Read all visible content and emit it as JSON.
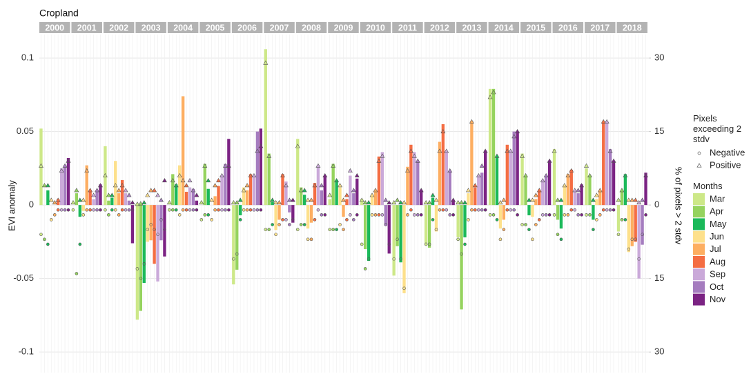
{
  "chart_data": {
    "type": "bar",
    "title": "Cropland",
    "ylabel": "EVI anomaly",
    "y2label": "% of pixels > 2 stdv",
    "facets": [
      "2000",
      "2001",
      "2002",
      "2003",
      "2004",
      "2005",
      "2006",
      "2007",
      "2008",
      "2009",
      "2010",
      "2011",
      "2012",
      "2013",
      "2014",
      "2015",
      "2016",
      "2017",
      "2018"
    ],
    "ylim": [
      -0.114,
      0.116
    ],
    "yticks": [
      -0.1,
      -0.05,
      0,
      0.05,
      0.1
    ],
    "y2lim": [
      -34.2,
      34.8
    ],
    "y2ticks": [
      {
        "value": -30,
        "label": "30"
      },
      {
        "value": -15,
        "label": "15"
      },
      0,
      15,
      {
        "value": 30,
        "label": "30"
      }
    ],
    "grid": true,
    "legend_title": "Months",
    "marker_legend": {
      "title": "Pixels exceeding 2 stdv",
      "items": [
        "Negative",
        "Positive"
      ]
    },
    "series": [
      {
        "name": "Mar",
        "color": "#cde888",
        "values": [
          0.052,
          0.0,
          0.04,
          -0.078,
          0.0,
          0.0,
          -0.054,
          0.106,
          0.045,
          0.004,
          0.004,
          -0.048,
          -0.026,
          -0.022,
          0.079,
          0.035,
          0.038,
          0.025,
          -0.018
        ],
        "positive": [
          8,
          0.5,
          6,
          0.2,
          0.5,
          0.5,
          0.5,
          29,
          12,
          2,
          1,
          0.5,
          0.5,
          0.5,
          22,
          10,
          11,
          8,
          1
        ],
        "negative": [
          -6,
          -1,
          -1,
          -13,
          -1,
          -3,
          -11,
          -5,
          -5,
          -5,
          -8,
          -11,
          -8,
          -7,
          -2,
          -4,
          -2,
          -2,
          -6
        ]
      },
      {
        "name": "Apr",
        "color": "#95d35e",
        "values": [
          0.0,
          0.008,
          0.003,
          -0.072,
          0.021,
          0.028,
          -0.044,
          0.035,
          0.012,
          0.028,
          -0.03,
          -0.028,
          -0.029,
          -0.071,
          0.079,
          0.019,
          -0.01,
          0.02,
          0.009
        ],
        "positive": [
          4,
          3,
          2,
          0.3,
          5,
          8,
          0.5,
          10,
          3,
          8,
          0.5,
          1,
          0.5,
          0.5,
          23,
          6,
          1,
          6,
          3
        ],
        "negative": [
          -7,
          -14,
          -2,
          -15,
          -1,
          -2,
          -10,
          -5,
          -4,
          -5,
          -13,
          -7,
          -8,
          -10,
          -2,
          -4,
          -6,
          -2,
          -3
        ]
      },
      {
        "name": "May",
        "color": "#1bb95a",
        "values": [
          0.01,
          -0.008,
          0.005,
          -0.053,
          0.014,
          0.011,
          -0.007,
          0.002,
          0.007,
          0.017,
          -0.038,
          -0.039,
          0.005,
          -0.022,
          0.033,
          -0.007,
          -0.016,
          -0.01,
          0.021
        ],
        "positive": [
          4,
          1,
          2,
          0.5,
          4,
          5,
          1,
          1,
          3,
          5,
          0.5,
          0.5,
          2,
          0.5,
          10,
          1,
          1,
          1,
          6
        ],
        "negative": [
          -8,
          -8,
          -1,
          -12,
          -1,
          -2,
          -3,
          -4,
          -4,
          -5,
          -11,
          -11,
          -3,
          -8,
          -3,
          -5,
          -7,
          -5,
          -3
        ]
      },
      {
        "name": "Jun",
        "color": "#fde08b",
        "values": [
          0.0,
          -0.004,
          0.03,
          -0.025,
          0.027,
          0.0,
          0.012,
          -0.017,
          -0.016,
          0.012,
          0.007,
          -0.06,
          -0.018,
          0.008,
          -0.016,
          -0.008,
          0.013,
          0.004,
          -0.032
        ],
        "positive": [
          1,
          1,
          4,
          2,
          6,
          1,
          3,
          0.5,
          1,
          4,
          2,
          0.5,
          1,
          3,
          0.5,
          1,
          4,
          2,
          1
        ],
        "negative": [
          -3,
          -2,
          -1,
          -5,
          -2,
          -3,
          -1,
          -6,
          -7,
          -4,
          -2,
          -17,
          -5,
          -3,
          -7,
          -7,
          -2,
          -3,
          -9
        ]
      },
      {
        "name": "Jul",
        "color": "#fdae61",
        "values": [
          0.0,
          0.027,
          0.008,
          -0.024,
          0.074,
          0.006,
          0.01,
          -0.01,
          -0.012,
          -0.008,
          0.01,
          0.026,
          0.043,
          0.057,
          -0.01,
          0.004,
          0.021,
          0.01,
          -0.028
        ],
        "positive": [
          0.5,
          7,
          3,
          3,
          5,
          4,
          4,
          0.5,
          1,
          1,
          3,
          7,
          11,
          17,
          1,
          2,
          6,
          3,
          1
        ],
        "negative": [
          -2,
          -1,
          -2,
          -4,
          -1,
          -1,
          -1,
          -4,
          -7,
          -5,
          -2,
          -2,
          -1,
          -1,
          -5,
          -4,
          -2,
          -2,
          -7
        ]
      },
      {
        "name": "Aug",
        "color": "#f46d43",
        "values": [
          0.004,
          0.009,
          0.017,
          -0.04,
          0.009,
          0.013,
          0.021,
          0.021,
          0.015,
          0.004,
          0.033,
          0.041,
          0.055,
          0.012,
          0.041,
          0.01,
          0.024,
          0.056,
          -0.025
        ],
        "positive": [
          1,
          3,
          4,
          3,
          4,
          5,
          6,
          6,
          4,
          2,
          9,
          11,
          15,
          4,
          11,
          3,
          7,
          17,
          1
        ],
        "negative": [
          -1,
          -1,
          -1,
          -5,
          -1,
          -1,
          -1,
          -3,
          -3,
          -3,
          -2,
          -1,
          -1,
          -1,
          -1,
          -3,
          -1,
          -1,
          -7
        ]
      },
      {
        "name": "Sep",
        "color": "#caa9d9",
        "values": [
          0.025,
          0.004,
          0.008,
          -0.052,
          0.012,
          0.02,
          0.02,
          0.016,
          0.027,
          0.02,
          0.036,
          0.036,
          0.036,
          0.02,
          0.037,
          0.016,
          0.01,
          0.057,
          -0.05
        ],
        "positive": [
          7,
          2,
          3,
          2,
          5,
          6,
          6,
          4,
          8,
          7,
          10,
          10,
          11,
          6,
          11,
          5,
          3,
          17,
          0.5
        ],
        "negative": [
          -1,
          -1,
          -1,
          -6,
          -1,
          -1,
          -1,
          -3,
          -1,
          -2,
          -2,
          -2,
          -1,
          -1,
          -1,
          -2,
          -1,
          -1,
          -11
        ]
      },
      {
        "name": "Oct",
        "color": "#a57cbf",
        "values": [
          0.027,
          0.009,
          0.003,
          -0.024,
          0.011,
          0.028,
          0.05,
          -0.005,
          0.01,
          0.008,
          -0.014,
          0.03,
          0.023,
          0.022,
          0.05,
          0.02,
          0.008,
          0.038,
          -0.027
        ],
        "positive": [
          8,
          3,
          2,
          1,
          3,
          8,
          11,
          1,
          4,
          3,
          1,
          9,
          7,
          8,
          14,
          6,
          3,
          11,
          1
        ],
        "negative": [
          -1,
          -1,
          -1,
          -3,
          -1,
          -1,
          -1,
          -4,
          -2,
          -3,
          -4,
          -2,
          -2,
          -1,
          -1,
          -2,
          -2,
          -1,
          -6
        ]
      },
      {
        "name": "Nov",
        "color": "#7b2383",
        "values": [
          0.032,
          0.014,
          -0.026,
          -0.035,
          0.003,
          0.045,
          0.052,
          -0.012,
          0.019,
          0.018,
          -0.033,
          0.01,
          0.003,
          0.037,
          0.049,
          0.03,
          0.014,
          0.03,
          0.022
        ],
        "positive": [
          9,
          4,
          0.5,
          5,
          2,
          8,
          12,
          1,
          6,
          6,
          0.5,
          3,
          1,
          11,
          15,
          9,
          4,
          9,
          6
        ],
        "negative": [
          -1,
          -1,
          -1,
          -5,
          -1,
          -1,
          -1,
          -3,
          -2,
          -2,
          -8,
          -2,
          -2,
          -1,
          -2,
          -2,
          -2,
          -1,
          -2
        ]
      }
    ]
  }
}
